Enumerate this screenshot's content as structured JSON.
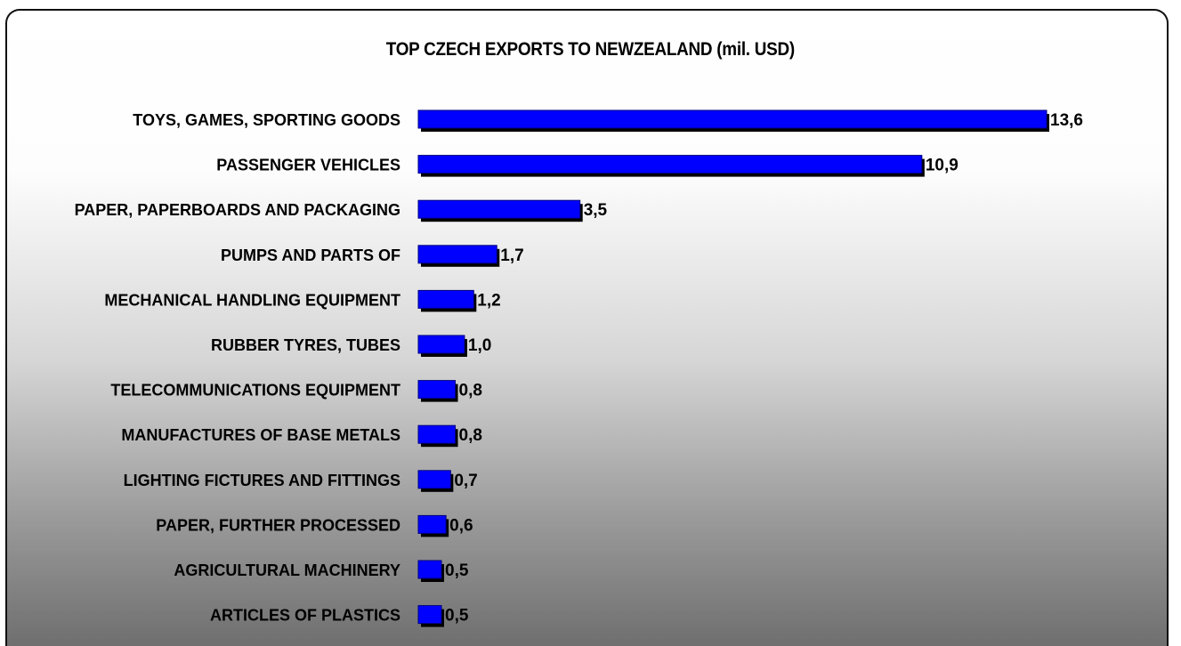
{
  "chart_data": {
    "type": "bar",
    "orientation": "horizontal",
    "title": "TOP CZECH EXPORTS TO NEWZEALAND (mil. USD)",
    "xlabel": "",
    "ylabel": "",
    "xlim": [
      0,
      13.6
    ],
    "grid": false,
    "legend": "none",
    "categories": [
      "TOYS, GAMES, SPORTING GOODS",
      "PASSENGER VEHICLES",
      "PAPER, PAPERBOARDS AND PACKAGING",
      "PUMPS AND PARTS OF",
      "MECHANICAL HANDLING EQUIPMENT",
      "RUBBER TYRES, TUBES",
      "TELECOMMUNICATIONS EQUIPMENT",
      "MANUFACTURES OF BASE METALS",
      "LIGHTING FICTURES AND FITTINGS",
      "PAPER, FURTHER PROCESSED",
      "AGRICULTURAL MACHINERY",
      "ARTICLES OF  PLASTICS"
    ],
    "values": [
      13.6,
      10.9,
      3.5,
      1.7,
      1.2,
      1.0,
      0.8,
      0.8,
      0.7,
      0.6,
      0.5,
      0.5
    ],
    "value_labels": [
      "13,6",
      "10,9",
      "3,5",
      "1,7",
      "1,2",
      "1,0",
      "0,8",
      "0,8",
      "0,7",
      "0,6",
      "0,5",
      "0,5"
    ],
    "colors": {
      "bar": "#0000ff",
      "bar_shadow": "#000000",
      "bar_edge": "#000080"
    }
  }
}
